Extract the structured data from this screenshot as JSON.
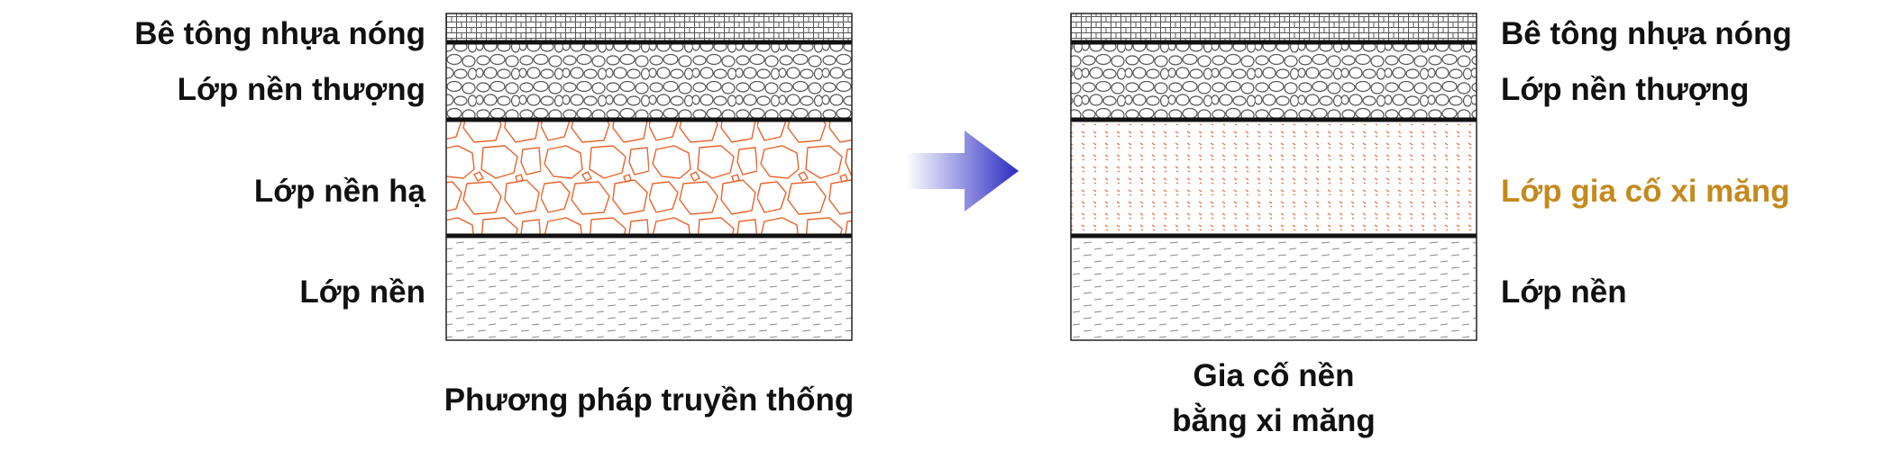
{
  "colors": {
    "orange": "#e8642c",
    "highlight_label": "#c48a1e",
    "arrow_dark": "#2a2abe",
    "arrow_light": "#ffffff",
    "line": "#222222",
    "hatch_gray": "#9a9a9a"
  },
  "left_diagram": {
    "labels": {
      "layer1": "Bê tông nhựa nóng",
      "layer2": "Lớp nền thượng",
      "layer3": "Lớp nền hạ",
      "layer4": "Lớp nền"
    },
    "caption": "Phương pháp truyền thống"
  },
  "arrow": {
    "icon": "gradient-right-arrow-icon"
  },
  "right_diagram": {
    "labels": {
      "layer1": "Bê tông nhựa nóng",
      "layer2": "Lớp nền thượng",
      "layer3": "Lớp gia cố xi măng",
      "layer4": "Lớp nền"
    },
    "caption_line1": "Gia cố nền",
    "caption_line2": "bằng xi măng"
  }
}
